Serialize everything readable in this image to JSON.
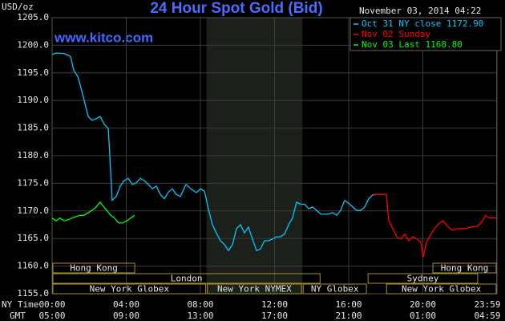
{
  "chart_data": {
    "type": "line",
    "title": "24 Hour Spot Gold (Bid)",
    "source": "www.kitco.com",
    "timestamp": "November 03, 2014 04:22",
    "y_label": "USD/oz",
    "x_row_labels": [
      "NY Time",
      "GMT"
    ],
    "xlim": [
      0,
      24
    ],
    "xticks": [
      {
        "value": 0,
        "label": "00:00"
      },
      {
        "value": 4,
        "label": "04:00"
      },
      {
        "value": 8,
        "label": "08:00"
      },
      {
        "value": 12,
        "label": "12:00"
      },
      {
        "value": 16,
        "label": "16:00"
      },
      {
        "value": 20,
        "label": "20:00"
      },
      {
        "value": 23.98,
        "label": "23:59"
      }
    ],
    "gmt_ticks": [
      {
        "value": 0,
        "label": "05:00"
      },
      {
        "value": 4,
        "label": "09:00"
      },
      {
        "value": 8,
        "label": "13:00"
      },
      {
        "value": 12,
        "label": "17:00"
      },
      {
        "value": 16,
        "label": "21:00"
      },
      {
        "value": 20,
        "label": "01:00"
      },
      {
        "value": 23.98,
        "label": "04:59"
      }
    ],
    "ylim": [
      1155,
      1205
    ],
    "yticks": [
      {
        "value": 1155,
        "label": "1155.0"
      },
      {
        "value": 1160,
        "label": "1160.0"
      },
      {
        "value": 1165,
        "label": "1165.0"
      },
      {
        "value": 1170,
        "label": "1170.0"
      },
      {
        "value": 1175,
        "label": "1175.0"
      },
      {
        "value": 1180,
        "label": "1180.0"
      },
      {
        "value": 1185,
        "label": "1185.0"
      },
      {
        "value": 1190,
        "label": "1190.0"
      },
      {
        "value": 1195,
        "label": "1195.0"
      },
      {
        "value": 1200,
        "label": "1200.0"
      },
      {
        "value": 1205,
        "label": "1205.0"
      }
    ],
    "grid": true,
    "series": [
      {
        "name": "Oct 31 NY close 1172.90",
        "color": "#00c8ff",
        "x": [
          0,
          0.22,
          0.65,
          0.99,
          1.17,
          1.38,
          1.51,
          1.73,
          1.95,
          2.16,
          2.38,
          2.59,
          2.81,
          3.03,
          3.16,
          3.24,
          3.46,
          3.68,
          3.89,
          4.11,
          4.32,
          4.54,
          4.76,
          4.97,
          5.19,
          5.41,
          5.62,
          5.84,
          6.05,
          6.27,
          6.49,
          6.7,
          6.92,
          7.22,
          7.48,
          7.78,
          8,
          8.22,
          8.43,
          8.65,
          8.86,
          9.08,
          9.3,
          9.51,
          9.73,
          9.95,
          10.16,
          10.38,
          10.59,
          10.81,
          11.03,
          11.24,
          11.46,
          11.68,
          11.89,
          12.11,
          12.32,
          12.54,
          12.76,
          12.97,
          13.19,
          13.41,
          13.62,
          13.84,
          14.05,
          14.27,
          14.49,
          14.92,
          15.14,
          15.35,
          15.57,
          15.78,
          16,
          16.22,
          16.43,
          16.65,
          16.86,
          17.08,
          17.3,
          17.51
        ],
        "values": [
          1198.3,
          1198.6,
          1198.5,
          1198,
          1195.4,
          1194.4,
          1192.9,
          1190,
          1187.1,
          1186.4,
          1186.7,
          1187.1,
          1185.7,
          1184.9,
          1177,
          1171.9,
          1172.6,
          1174.5,
          1175.5,
          1175.9,
          1174.8,
          1175.1,
          1175.9,
          1175.5,
          1174.8,
          1174,
          1174.5,
          1173,
          1172.2,
          1173.4,
          1174,
          1173,
          1172.6,
          1174.8,
          1174,
          1173.3,
          1174,
          1173.6,
          1170.4,
          1167.5,
          1166,
          1164.6,
          1163.9,
          1162.8,
          1163.9,
          1166.8,
          1167.5,
          1166,
          1167.1,
          1164.9,
          1162.8,
          1163.1,
          1164.6,
          1164.6,
          1164.9,
          1165.3,
          1165.3,
          1165.8,
          1167.5,
          1168.7,
          1171.6,
          1171.2,
          1171.2,
          1170.4,
          1170.7,
          1170.1,
          1169.4,
          1169.4,
          1169.7,
          1169.2,
          1170.1,
          1171.9,
          1171.4,
          1170.7,
          1170.1,
          1170.1,
          1170.7,
          1172.2,
          1172.9,
          1173
        ]
      },
      {
        "name": "Nov 02 Sunday",
        "color": "#ff0000",
        "x": [
          17.3,
          18.03,
          18.16,
          18.38,
          18.59,
          18.81,
          19.03,
          19.24,
          19.46,
          19.68,
          19.89,
          20.02,
          20.19,
          20.41,
          20.63,
          20.89,
          21.1,
          21.32,
          21.62,
          21.92,
          22.27,
          22.62,
          22.92,
          23.14,
          23.39,
          23.57,
          23.78,
          24
        ],
        "values": [
          1173,
          1173,
          1168.2,
          1166.8,
          1165.3,
          1164.9,
          1165.8,
          1164.6,
          1165.3,
          1164.9,
          1164.3,
          1161.7,
          1164.3,
          1165.6,
          1166.8,
          1167.8,
          1168.2,
          1167.2,
          1166.5,
          1166.8,
          1166.8,
          1167.1,
          1167.2,
          1167.8,
          1169.2,
          1168.7,
          1168.7,
          1168.7
        ]
      },
      {
        "name": "Nov 03 Last 1168.80",
        "color": "#00ff00",
        "x": [
          0,
          0.22,
          0.43,
          0.65,
          0.86,
          1.08,
          1.3,
          1.51,
          1.73,
          1.95,
          2.16,
          2.38,
          2.59,
          2.72,
          2.94,
          3.16,
          3.37,
          3.59,
          3.81,
          4.02,
          4.24,
          4.45
        ],
        "values": [
          1168.7,
          1168.2,
          1168.7,
          1168.2,
          1168.4,
          1168.7,
          1169,
          1169.2,
          1169.2,
          1169.7,
          1170.1,
          1170.7,
          1171.6,
          1171,
          1170.1,
          1169.2,
          1168.7,
          1167.8,
          1167.8,
          1168.2,
          1168.7,
          1169.2
        ]
      }
    ],
    "sessions": [
      [
        {
          "label": "Hong Kong",
          "start": 0,
          "end": 4.5
        },
        {
          "label": "Hong Kong",
          "start": 20.5,
          "end": 24
        }
      ],
      [
        {
          "label": "London",
          "start": 0,
          "end": 14.5
        },
        {
          "label": "Sydney",
          "start": 17,
          "end": 23
        }
      ],
      [
        {
          "label": "New York Globex",
          "start": 0,
          "end": 8.33
        },
        {
          "label": "New York NYMEX",
          "start": 8.33,
          "end": 13.5,
          "shaded": true
        },
        {
          "label": "NY Globex",
          "start": 13.5,
          "end": 17
        },
        {
          "label": "New York Globex",
          "start": 18,
          "end": 24
        }
      ]
    ]
  }
}
